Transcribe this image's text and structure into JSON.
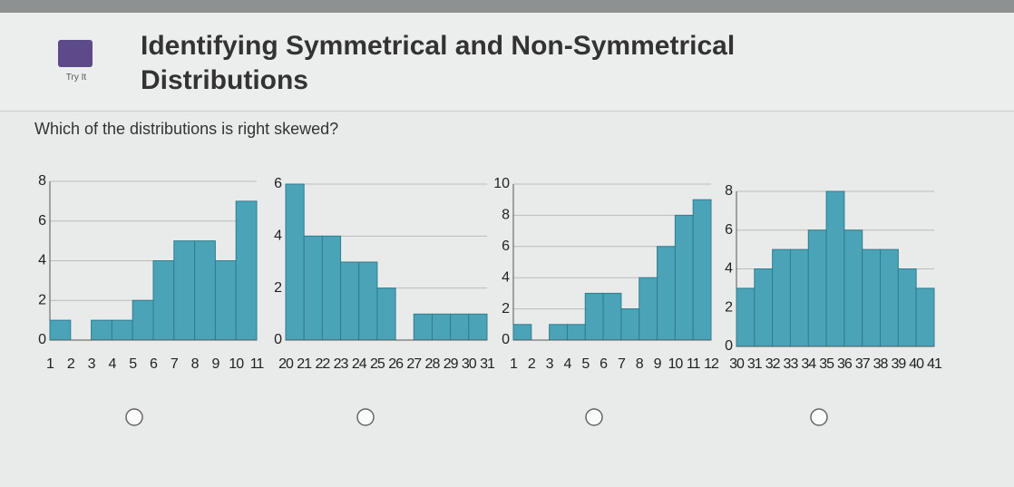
{
  "header": {
    "icon_label": "Try It",
    "title": "Identifying Symmetrical and Non-Symmetrical Distributions"
  },
  "question": "Which of the distributions is right skewed?",
  "chart_data": [
    {
      "type": "histogram",
      "bins": [
        1,
        2,
        3,
        4,
        5,
        6,
        7,
        8,
        9,
        10,
        11
      ],
      "values": [
        1,
        0,
        1,
        1,
        2,
        4,
        5,
        5,
        4,
        7
      ],
      "ylim": [
        0,
        8
      ],
      "yticks": [
        0,
        2,
        4,
        6,
        8
      ],
      "color": "#4aa3b7",
      "grid": true
    },
    {
      "type": "histogram",
      "bins": [
        20,
        21,
        22,
        23,
        24,
        25,
        26,
        27,
        28,
        29,
        30,
        31
      ],
      "values": [
        6,
        4,
        4,
        3,
        3,
        2,
        0,
        1,
        1,
        1,
        1
      ],
      "ylim": [
        0,
        6
      ],
      "yticks": [
        0,
        2,
        4,
        6
      ],
      "color": "#4aa3b7",
      "grid": true
    },
    {
      "type": "histogram",
      "bins": [
        1,
        2,
        3,
        4,
        5,
        6,
        7,
        8,
        9,
        10,
        11,
        12
      ],
      "values": [
        1,
        0,
        1,
        1,
        3,
        3,
        2,
        4,
        6,
        8,
        9
      ],
      "ylim": [
        0,
        10
      ],
      "yticks": [
        0,
        2,
        4,
        6,
        8,
        10
      ],
      "color": "#4aa3b7",
      "grid": true
    },
    {
      "type": "histogram",
      "bins": [
        30,
        31,
        32,
        33,
        34,
        35,
        36,
        37,
        38,
        39,
        40,
        41
      ],
      "values": [
        3,
        4,
        5,
        5,
        6,
        8,
        6,
        5,
        5,
        4,
        3
      ],
      "ylim": [
        0,
        8
      ],
      "yticks": [
        0,
        2,
        4,
        6,
        8
      ],
      "color": "#4aa3b7",
      "grid": true
    }
  ]
}
